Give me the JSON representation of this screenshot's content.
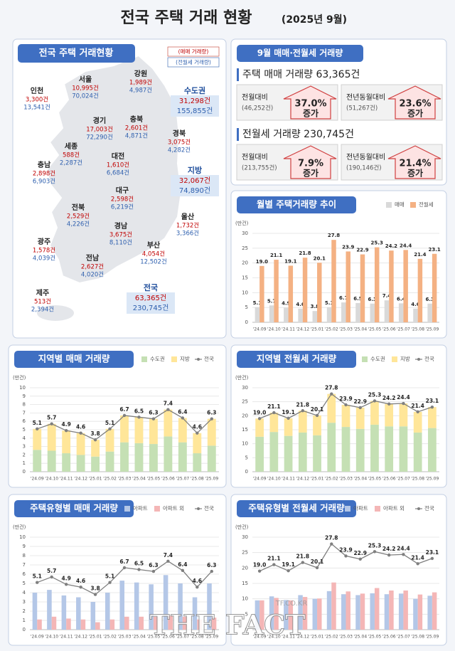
{
  "title": "전국 주택 거래 현황",
  "subtitle": "(2025년 9월)",
  "map": {
    "heading": "전국 주택 거래현황",
    "legend": [
      "(매매 거래량)",
      "(전월세 거래량)"
    ],
    "regions": [
      {
        "name": "인천",
        "sale": "3,300건",
        "rent": "13,541건"
      },
      {
        "name": "서울",
        "sale": "10,995건",
        "rent": "70,024건"
      },
      {
        "name": "강원",
        "sale": "1,989건",
        "rent": "4,987건"
      },
      {
        "name": "경기",
        "sale": "17,003건",
        "rent": "72,290건"
      },
      {
        "name": "충북",
        "sale": "2,601건",
        "rent": "4,871건"
      },
      {
        "name": "경북",
        "sale": "3,075건",
        "rent": "4,282건"
      },
      {
        "name": "세종",
        "sale": "588건",
        "rent": "2,287건"
      },
      {
        "name": "대전",
        "sale": "1,610건",
        "rent": "6,684건"
      },
      {
        "name": "충남",
        "sale": "2,898건",
        "rent": "6,903건"
      },
      {
        "name": "대구",
        "sale": "2,598건",
        "rent": "6,219건"
      },
      {
        "name": "전북",
        "sale": "2,529건",
        "rent": "4,226건"
      },
      {
        "name": "울산",
        "sale": "1,732건",
        "rent": "3,366건"
      },
      {
        "name": "경남",
        "sale": "3,675건",
        "rent": "8,110건"
      },
      {
        "name": "광주",
        "sale": "1,578건",
        "rent": "4,039건"
      },
      {
        "name": "부산",
        "sale": "4,054건",
        "rent": "12,502건"
      },
      {
        "name": "전남",
        "sale": "2,627건",
        "rent": "4,020건"
      },
      {
        "name": "제주",
        "sale": "513건",
        "rent": "2,394건"
      }
    ],
    "totals": [
      {
        "name": "수도권",
        "sale": "31,298건",
        "rent": "155,855건"
      },
      {
        "name": "지방",
        "sale": "32,067건",
        "rent": "74,890건"
      },
      {
        "name": "전국",
        "sale": "63,365건",
        "rent": "230,745건"
      }
    ]
  },
  "summary": {
    "heading": "9월 매매·전월세 거래량",
    "sections": [
      {
        "label": "주택 매매 거래량 63,365건",
        "boxes": [
          {
            "label": "전월대비",
            "base": "(46,252건)",
            "rate": "37.0%",
            "change": "증가"
          },
          {
            "label": "전년동월대비",
            "base": "(51,267건)",
            "rate": "23.6%",
            "change": "증가"
          }
        ]
      },
      {
        "label": "전월세 거래량 230,745건",
        "boxes": [
          {
            "label": "전월대비",
            "base": "(213,755건)",
            "rate": "7.9%",
            "change": "증가"
          },
          {
            "label": "전년동월대비",
            "base": "(190,146건)",
            "rate": "21.4%",
            "change": "증가"
          }
        ]
      }
    ]
  },
  "chart_data": [
    {
      "type": "bar",
      "title": "월별 주택거래량 추이",
      "y_label": "(만건)",
      "bar_mode": "grouped",
      "grid": true,
      "categories": [
        "'24.09",
        "'24.10",
        "'24.11",
        "'24.12",
        "'25.01",
        "'25.02",
        "'25.03",
        "'25.04",
        "'25.05",
        "'25.06",
        "'25.07",
        "'25.08",
        "'25.09"
      ],
      "ylim": [
        0,
        30
      ],
      "yticks": [
        0,
        5,
        10,
        15,
        20,
        25,
        30
      ],
      "series": [
        {
          "name": "매매",
          "type": "bar",
          "color": "#d9d9d9",
          "values": [
            5.1,
            5.7,
            4.9,
            4.6,
            3.8,
            5.1,
            6.7,
            6.5,
            6.3,
            7.4,
            6.4,
            4.6,
            6.3
          ],
          "value_labels": [
            "5.1",
            "5.7",
            "4.9",
            "4.6",
            "3.8",
            "5.1",
            "6.7",
            "6.5",
            "6.3",
            "7.4",
            "6.4",
            "4.6",
            "6.3"
          ]
        },
        {
          "name": "전월세",
          "type": "bar",
          "color": "#f4b183",
          "values": [
            19.0,
            21.1,
            19.1,
            21.8,
            20.1,
            27.8,
            23.9,
            22.9,
            25.3,
            24.2,
            24.4,
            21.4,
            23.1
          ],
          "value_labels": [
            "19.0",
            "21.1",
            "19.1",
            "21.8",
            "20.1",
            "27.8",
            "23.9",
            "22.9",
            "25.3",
            "24.2",
            "24.4",
            "21.4",
            "23.1"
          ]
        }
      ]
    },
    {
      "type": "bar",
      "title": "지역별 매매 거래량",
      "y_label": "(만건)",
      "bar_mode": "stacked",
      "grid": true,
      "categories": [
        "'24.09",
        "'24.10",
        "'24.11",
        "'24.12",
        "'25.01",
        "'25.02",
        "'25.03",
        "'25.04",
        "'25.05",
        "'25.06",
        "'25.07",
        "'25.08",
        "'25.09"
      ],
      "ylim": [
        0,
        10
      ],
      "yticks": [
        0,
        1,
        2,
        3,
        4,
        5,
        6,
        7,
        8,
        9,
        10
      ],
      "series": [
        {
          "name": "수도권",
          "type": "bar",
          "color": "#c5e0b4",
          "values": [
            2.6,
            2.5,
            2.2,
            2.0,
            1.8,
            2.4,
            3.5,
            3.4,
            3.3,
            4.2,
            3.5,
            2.2,
            3.1
          ]
        },
        {
          "name": "지방",
          "type": "bar",
          "color": "#ffe699",
          "values": [
            2.5,
            3.2,
            2.7,
            2.6,
            2.0,
            2.7,
            3.2,
            3.1,
            3.0,
            3.2,
            2.9,
            2.4,
            3.2
          ]
        },
        {
          "name": "전국",
          "type": "line",
          "color": "#7f7f7f",
          "values": [
            5.1,
            5.7,
            4.9,
            4.6,
            3.8,
            5.1,
            6.7,
            6.5,
            6.3,
            7.4,
            6.4,
            4.6,
            6.3
          ],
          "value_labels": [
            "5.1",
            "5.7",
            "4.9",
            "4.6",
            "3.8",
            "5.1",
            "6.7",
            "6.5",
            "6.3",
            "7.4",
            "6.4",
            "4.6",
            "6.3"
          ]
        }
      ]
    },
    {
      "type": "bar",
      "title": "지역별 전월세 거래량",
      "y_label": "(만건)",
      "bar_mode": "stacked",
      "grid": true,
      "categories": [
        "'24.09",
        "'24.10",
        "'24.11",
        "'24.12",
        "'25.01",
        "'25.02",
        "'25.03",
        "'25.04",
        "'25.05",
        "'25.06",
        "'25.07",
        "'25.08",
        "'25.09"
      ],
      "ylim": [
        0,
        30
      ],
      "yticks": [
        0,
        5,
        10,
        15,
        20,
        25,
        30
      ],
      "series": [
        {
          "name": "수도권",
          "type": "bar",
          "color": "#c5e0b4",
          "values": [
            12.5,
            14.2,
            12.8,
            14.0,
            13.0,
            17.5,
            16.0,
            15.3,
            16.8,
            16.2,
            16.2,
            14.0,
            15.6
          ]
        },
        {
          "name": "지방",
          "type": "bar",
          "color": "#ffe699",
          "values": [
            6.5,
            6.9,
            6.3,
            7.8,
            7.1,
            10.3,
            7.9,
            7.6,
            8.5,
            8.0,
            8.2,
            7.4,
            7.5
          ]
        },
        {
          "name": "전국",
          "type": "line",
          "color": "#7f7f7f",
          "values": [
            19.0,
            21.1,
            19.1,
            21.8,
            20.1,
            27.8,
            23.9,
            22.9,
            25.3,
            24.2,
            24.4,
            21.4,
            23.1
          ],
          "value_labels": [
            "19.0",
            "21.1",
            "19.1",
            "21.8",
            "20.1",
            "27.8",
            "23.9",
            "22.9",
            "25.3",
            "24.2",
            "24.4",
            "21.4",
            "23.1"
          ]
        }
      ]
    },
    {
      "type": "bar",
      "title": "주택유형별 매매 거래량",
      "y_label": "(만건)",
      "bar_mode": "grouped",
      "grid": true,
      "categories": [
        "'24.09",
        "'24.10",
        "'24.11",
        "'24.12",
        "'25.01",
        "'25.02",
        "'25.03",
        "'25.04",
        "'25.05",
        "'25.06",
        "'25.07",
        "'25.08",
        "'25.09"
      ],
      "ylim": [
        0,
        10
      ],
      "yticks": [
        0,
        1,
        2,
        3,
        4,
        5,
        6,
        7,
        8,
        9,
        10
      ],
      "series": [
        {
          "name": "아파트",
          "type": "bar",
          "color": "#b4c7e7",
          "values": [
            4.0,
            4.3,
            3.7,
            3.5,
            3.0,
            4.0,
            5.3,
            5.1,
            4.9,
            5.9,
            5.0,
            3.5,
            5.0
          ]
        },
        {
          "name": "아파트 외",
          "type": "bar",
          "color": "#f4b6b6",
          "values": [
            1.1,
            1.4,
            1.2,
            1.1,
            0.8,
            1.1,
            1.4,
            1.4,
            1.4,
            1.5,
            1.4,
            1.1,
            1.3
          ]
        },
        {
          "name": "전국",
          "type": "line",
          "color": "#7f7f7f",
          "values": [
            5.1,
            5.7,
            4.9,
            4.6,
            3.8,
            5.1,
            6.7,
            6.5,
            6.3,
            7.4,
            6.4,
            4.6,
            6.3
          ],
          "value_labels": [
            "5.1",
            "5.7",
            "4.9",
            "4.6",
            "3.8",
            "5.1",
            "6.7",
            "6.5",
            "6.3",
            "7.4",
            "6.4",
            "4.6",
            "6.3"
          ]
        }
      ]
    },
    {
      "type": "bar",
      "title": "주택유형별 전월세 거래량",
      "y_label": "(만건)",
      "bar_mode": "grouped",
      "grid": true,
      "categories": [
        "'24.09",
        "'24.10",
        "'24.11",
        "'24.12",
        "'25.01",
        "'25.02",
        "'25.03",
        "'25.04",
        "'25.05",
        "'25.06",
        "'25.07",
        "'25.08",
        "'25.09"
      ],
      "ylim": [
        0,
        30
      ],
      "yticks": [
        0,
        5,
        10,
        15,
        20,
        25,
        30
      ],
      "series": [
        {
          "name": "아파트",
          "type": "bar",
          "color": "#b4c7e7",
          "values": [
            9.5,
            10.8,
            9.6,
            11.2,
            10.0,
            12.5,
            11.5,
            11.2,
            11.8,
            11.5,
            11.7,
            10.0,
            11.0
          ]
        },
        {
          "name": "아파트 외",
          "type": "bar",
          "color": "#f4b6b6",
          "values": [
            9.5,
            10.3,
            9.5,
            10.6,
            10.1,
            15.3,
            12.4,
            11.7,
            13.5,
            12.7,
            12.7,
            11.4,
            12.1
          ]
        },
        {
          "name": "전국",
          "type": "line",
          "color": "#7f7f7f",
          "values": [
            19.0,
            21.1,
            19.1,
            21.8,
            20.1,
            27.8,
            23.9,
            22.9,
            25.3,
            24.2,
            24.4,
            21.4,
            23.1
          ],
          "value_labels": [
            "19.0",
            "21.1",
            "19.1",
            "21.8",
            "20.1",
            "27.8",
            "23.9",
            "22.9",
            "25.3",
            "24.2",
            "24.4",
            "21.4",
            "23.1"
          ]
        }
      ]
    }
  ],
  "watermark": {
    "site": "TF.CO.KR",
    "brand": "THE FACT"
  }
}
